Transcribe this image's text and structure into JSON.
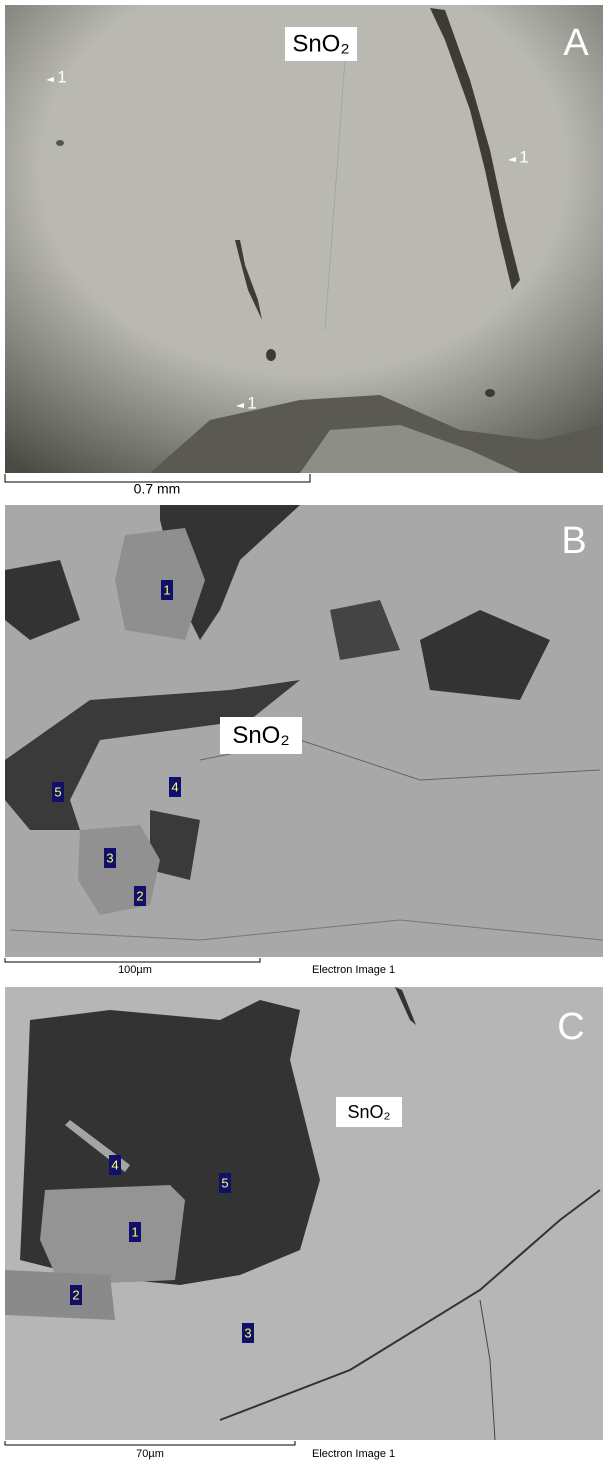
{
  "panels": [
    {
      "letter": "A",
      "label": "SnO₂",
      "markers": [
        "1",
        "1",
        "1"
      ],
      "scale_bar": "0.7 mm"
    },
    {
      "letter": "B",
      "label": "SnO₂",
      "markers": [
        "1",
        "5",
        "4",
        "3",
        "2"
      ],
      "scale_bar": "100µm",
      "caption": "Electron Image 1"
    },
    {
      "letter": "C",
      "label": "SnO₂",
      "markers": [
        "4",
        "5",
        "1",
        "2",
        "3"
      ],
      "scale_bar": "70µm",
      "caption": "Electron Image 1"
    }
  ]
}
